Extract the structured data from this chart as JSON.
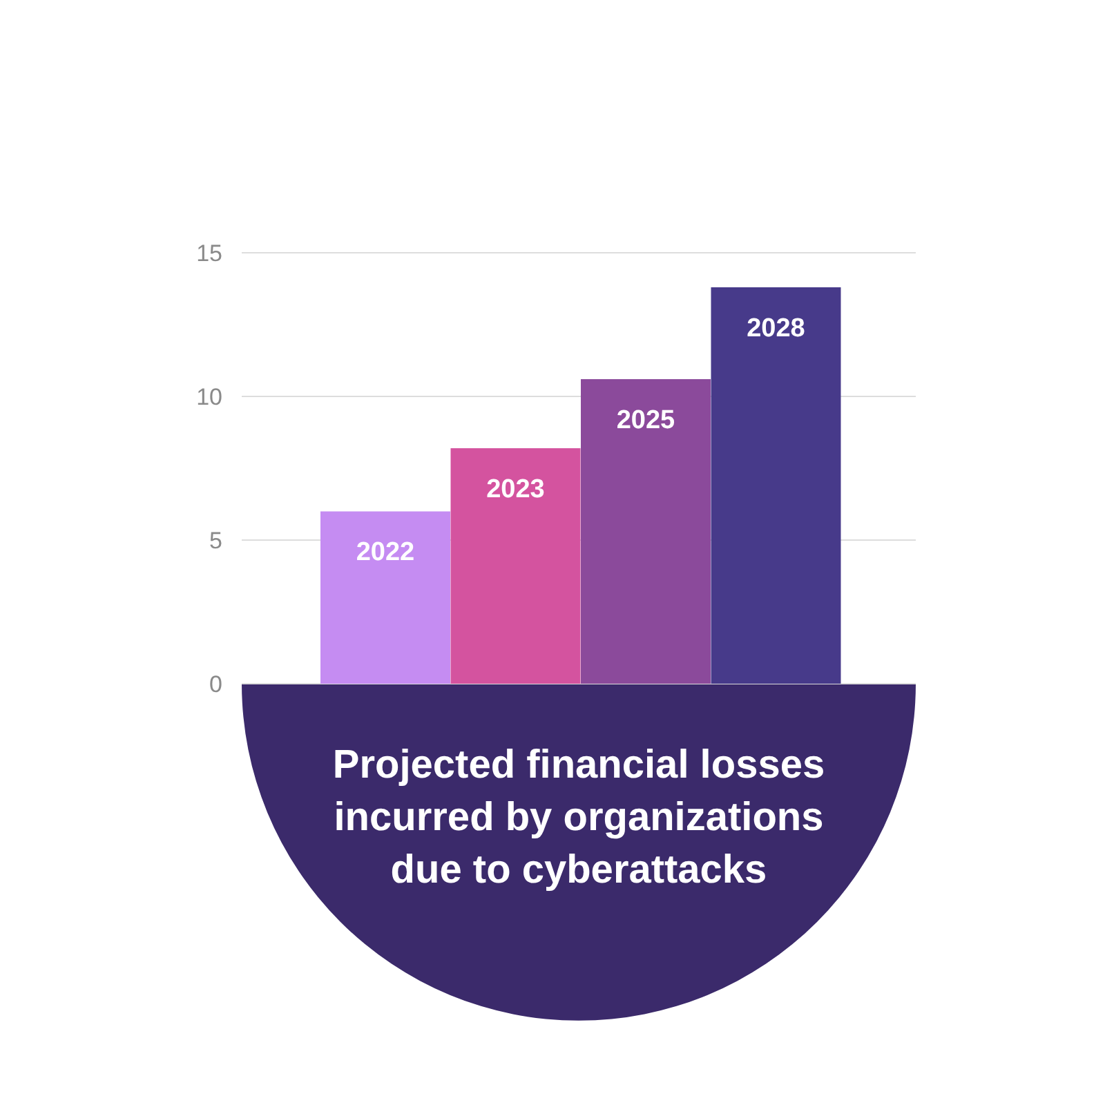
{
  "chart_data": {
    "type": "bar",
    "title": "Projected financial losses incurred by organizations due to cyberattacks",
    "categories": [
      "2022",
      "2023",
      "2025",
      "2028"
    ],
    "values": [
      6,
      8.2,
      10.6,
      13.8
    ],
    "colors": [
      "#c58cf2",
      "#d4539f",
      "#8b4a9b",
      "#473a8a"
    ],
    "ylim": [
      0,
      15
    ],
    "yticks": [
      0,
      5,
      10,
      15
    ],
    "grid": "y"
  }
}
